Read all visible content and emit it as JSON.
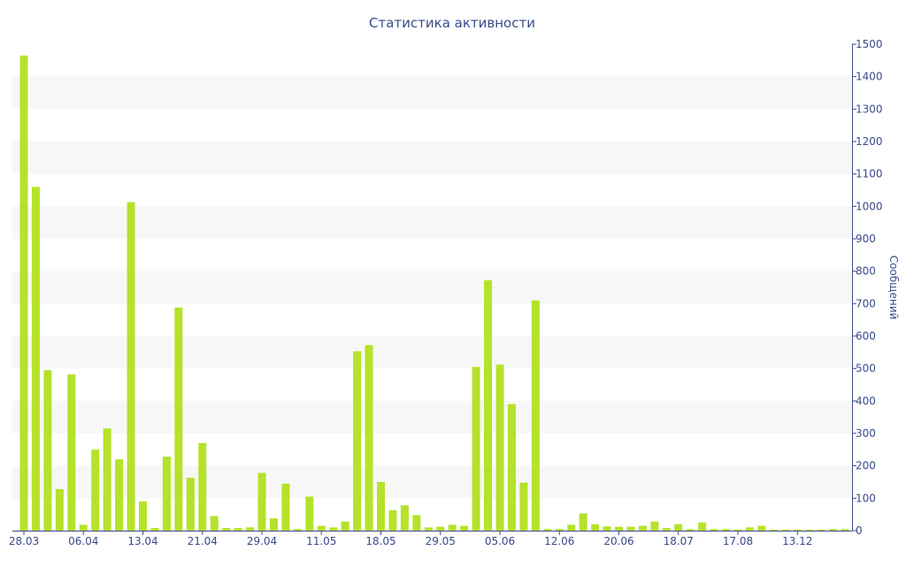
{
  "chart_data": {
    "type": "bar",
    "title": "Статистика активности",
    "xlabel": "",
    "ylabel": "Сообщений",
    "ylim": [
      0,
      1500
    ],
    "yticks": [
      0,
      100,
      200,
      300,
      400,
      500,
      600,
      700,
      800,
      900,
      1000,
      1100,
      1200,
      1300,
      1400,
      1500
    ],
    "x_tick_labels": [
      "28.03",
      "06.04",
      "13.04",
      "21.04",
      "29.04",
      "11.05",
      "18.05",
      "29.05",
      "05.06",
      "12.06",
      "20.06",
      "18.07",
      "17.08",
      "13.12"
    ],
    "x_tick_indices": [
      0,
      5,
      10,
      15,
      20,
      25,
      30,
      35,
      40,
      45,
      50,
      55,
      60,
      65
    ],
    "grid": "alternating horizontal bands",
    "y_axis_position": "right",
    "colors": {
      "bar": "#b5e22a",
      "band": "#f7f7f7",
      "axis": "#3a4a8a"
    },
    "values": [
      1465,
      1060,
      495,
      128,
      482,
      18,
      250,
      315,
      220,
      1013,
      90,
      8,
      228,
      688,
      163,
      270,
      45,
      8,
      8,
      10,
      178,
      38,
      145,
      5,
      105,
      15,
      10,
      28,
      553,
      572,
      150,
      63,
      78,
      48,
      10,
      12,
      18,
      15,
      505,
      772,
      512,
      390,
      148,
      710,
      5,
      5,
      18,
      53,
      20,
      13,
      12,
      12,
      15,
      28,
      8,
      20,
      5,
      25,
      5,
      5,
      3,
      10,
      15,
      3,
      3,
      3,
      3,
      3,
      5,
      5
    ]
  }
}
